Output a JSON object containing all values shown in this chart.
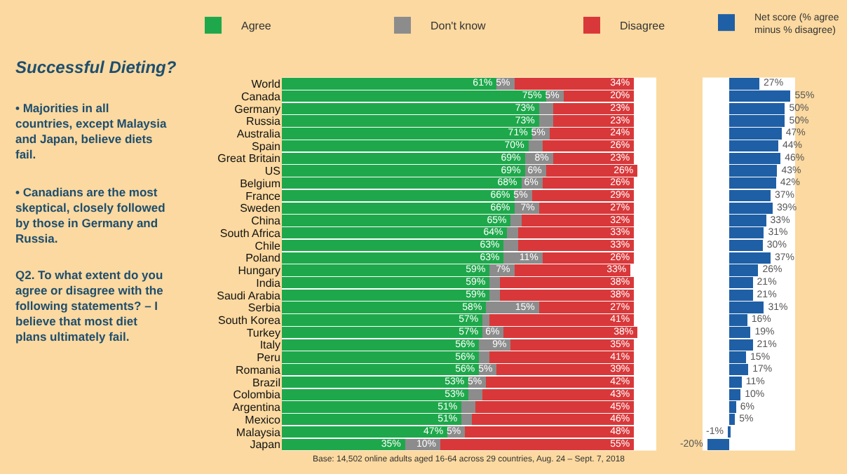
{
  "chart_data": [
    {
      "type": "bar",
      "orientation": "horizontal",
      "stacked": true,
      "title": "Successful Dieting?",
      "legend": "top",
      "tick_labels": "y",
      "categories": [
        "World",
        "Canada",
        "Germany",
        "Russia",
        "Australia",
        "Spain",
        "Great Britain",
        "US",
        "Belgium",
        "France",
        "Sweden",
        "China",
        "South Africa",
        "Chile",
        "Poland",
        "Hungary",
        "India",
        "Saudi Arabia",
        "Serbia",
        "South Korea",
        "Turkey",
        "Italy",
        "Peru",
        "Romania",
        "Brazil",
        "Colombia",
        "Argentina",
        "Mexico",
        "Malaysia",
        "Japan"
      ],
      "series": [
        {
          "name": "Agree",
          "color": "#1ea84b",
          "values": [
            61,
            75,
            73,
            73,
            71,
            70,
            69,
            69,
            68,
            66,
            66,
            65,
            64,
            63,
            63,
            59,
            59,
            59,
            58,
            57,
            57,
            56,
            56,
            56,
            53,
            53,
            51,
            51,
            47,
            35
          ],
          "value_labels": [
            "61%",
            "75%",
            "73%",
            "73%",
            "71%",
            "70%",
            "69%",
            "69%",
            "68%",
            "66%",
            "66%",
            "65%",
            "64%",
            "63%",
            "63%",
            "59%",
            "59%",
            "59%",
            "58%",
            "57%",
            "57%",
            "56%",
            "56%",
            "56%",
            "53%",
            "53%",
            "51%",
            "51%",
            "47%",
            "35%"
          ]
        },
        {
          "name": "Don't know",
          "color": "#8c8c8c",
          "values": [
            5,
            5,
            4,
            4,
            5,
            4,
            8,
            6,
            6,
            5,
            7,
            3,
            3,
            4,
            11,
            7,
            3,
            3,
            15,
            2,
            6,
            9,
            3,
            5,
            5,
            4,
            4,
            3,
            5,
            10
          ],
          "value_labels": [
            "5%",
            "5%",
            null,
            null,
            "5%",
            null,
            "8%",
            "6%",
            "6%",
            "5%",
            "7%",
            null,
            null,
            null,
            "11%",
            "7%",
            null,
            null,
            "15%",
            null,
            "6%",
            "9%",
            null,
            "5%",
            "5%",
            null,
            null,
            null,
            "5%",
            "10%"
          ]
        },
        {
          "name": "Disagree",
          "color": "#d9383a",
          "values": [
            34,
            20,
            23,
            23,
            24,
            26,
            23,
            26,
            26,
            29,
            27,
            32,
            33,
            33,
            26,
            33,
            38,
            38,
            27,
            41,
            38,
            35,
            41,
            39,
            42,
            43,
            45,
            46,
            48,
            55
          ],
          "value_labels": [
            "34%",
            "20%",
            "23%",
            "23%",
            "24%",
            "26%",
            "23%",
            "26%",
            "26%",
            "29%",
            "27%",
            "32%",
            "33%",
            "33%",
            "26%",
            "33%",
            "38%",
            "38%",
            "27%",
            "41%",
            "38%",
            "35%",
            "41%",
            "39%",
            "42%",
            "43%",
            "45%",
            "46%",
            "48%",
            "55%"
          ]
        }
      ],
      "annotations": [
        "• Majorities in all countries, except Malaysia and Japan, believe diets fail.",
        "• Canadians are the most skeptical, closely followed by those in Germany and Russia.",
        "Q2. To what extent do you agree or disagree with the following statements? – I believe that most diet plans ultimately fail.",
        "Base: 14,502 online adults aged 16-64 across 29 countries, Aug. 24 – Sept. 7, 2018"
      ]
    },
    {
      "type": "bar",
      "orientation": "horizontal",
      "legend": "top",
      "tick_labels": false,
      "categories": [
        null,
        null,
        null,
        null,
        null,
        null,
        null,
        null,
        null,
        null,
        null,
        null,
        null,
        null,
        null,
        null,
        null,
        null,
        null,
        null,
        null,
        null,
        null,
        null,
        null,
        null,
        null,
        null,
        null,
        null
      ],
      "series": [
        {
          "name": "Net score (% agree minus % disagree)",
          "color": "#1f5fa6",
          "values": [
            27,
            55,
            50,
            50,
            47,
            44,
            46,
            43,
            42,
            37,
            39,
            33,
            31,
            30,
            37,
            26,
            21,
            21,
            31,
            16,
            19,
            21,
            15,
            17,
            11,
            10,
            6,
            5,
            -1,
            -20
          ],
          "value_labels": [
            "27%",
            "55%",
            "50%",
            "50%",
            "47%",
            "44%",
            "46%",
            "43%",
            "42%",
            "37%",
            "39%",
            "33%",
            "31%",
            "30%",
            "37%",
            "26%",
            "21%",
            "21%",
            "31%",
            "16%",
            "19%",
            "21%",
            "15%",
            "17%",
            "11%",
            "10%",
            "6%",
            "5%",
            "-1%",
            "-20%"
          ]
        }
      ]
    }
  ]
}
